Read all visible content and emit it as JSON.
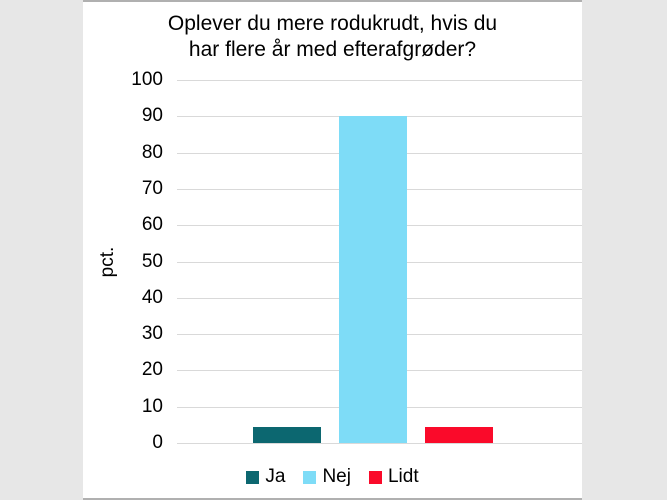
{
  "window": {
    "outer_background": "#e7e7e7",
    "panel_background": "#ffffff",
    "frame_line_color": "#b0b0b0"
  },
  "chart_data": {
    "type": "bar",
    "title": "Oplever du mere rodukrudt, hvis du har flere år med efterafgrøder?",
    "title_lines": [
      "Oplever du mere rodukrudt, hvis du",
      "har flere år med efterafgrøder?"
    ],
    "ylabel": "pct.",
    "xlabel": "",
    "ylim": [
      0,
      100
    ],
    "ytick_interval": 10,
    "ytick_labels": [
      "0",
      "10",
      "20",
      "30",
      "40",
      "50",
      "60",
      "70",
      "80",
      "90",
      "100"
    ],
    "grid": "horizontal gridlines on",
    "gridline_color": "#d9d9d9",
    "legend_position": "bottom",
    "legend_entries": [
      "Ja",
      "Nej",
      "Lidt"
    ],
    "series": [
      {
        "name": "Ja",
        "value": 4.5,
        "color": "#0c6770"
      },
      {
        "name": "Nej",
        "value": 90,
        "color": "#7edcf7"
      },
      {
        "name": "Lidt",
        "value": 4.5,
        "color": "#fa0a2a"
      }
    ]
  }
}
